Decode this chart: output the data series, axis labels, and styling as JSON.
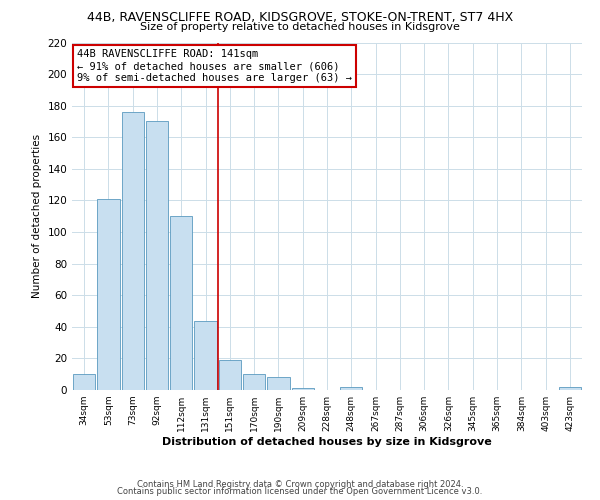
{
  "title_line1": "44B, RAVENSCLIFFE ROAD, KIDSGROVE, STOKE-ON-TRENT, ST7 4HX",
  "title_line2": "Size of property relative to detached houses in Kidsgrove",
  "xlabel": "Distribution of detached houses by size in Kidsgrove",
  "ylabel": "Number of detached properties",
  "bar_labels": [
    "34sqm",
    "53sqm",
    "73sqm",
    "92sqm",
    "112sqm",
    "131sqm",
    "151sqm",
    "170sqm",
    "190sqm",
    "209sqm",
    "228sqm",
    "248sqm",
    "267sqm",
    "287sqm",
    "306sqm",
    "326sqm",
    "345sqm",
    "365sqm",
    "384sqm",
    "403sqm",
    "423sqm"
  ],
  "bar_values": [
    10,
    121,
    176,
    170,
    110,
    44,
    19,
    10,
    8,
    1,
    0,
    2,
    0,
    0,
    0,
    0,
    0,
    0,
    0,
    0,
    2
  ],
  "bar_color": "#c8dff0",
  "bar_edge_color": "#5a9abf",
  "vline_x": 5.5,
  "vline_color": "#cc0000",
  "annotation_title": "44B RAVENSCLIFFE ROAD: 141sqm",
  "annotation_line1": "← 91% of detached houses are smaller (606)",
  "annotation_line2": "9% of semi-detached houses are larger (63) →",
  "annotation_box_color": "#ffffff",
  "annotation_box_edge": "#cc0000",
  "ylim": [
    0,
    220
  ],
  "yticks": [
    0,
    20,
    40,
    60,
    80,
    100,
    120,
    140,
    160,
    180,
    200,
    220
  ],
  "footer_line1": "Contains HM Land Registry data © Crown copyright and database right 2024.",
  "footer_line2": "Contains public sector information licensed under the Open Government Licence v3.0.",
  "bg_color": "#ffffff",
  "grid_color": "#ccdde8"
}
